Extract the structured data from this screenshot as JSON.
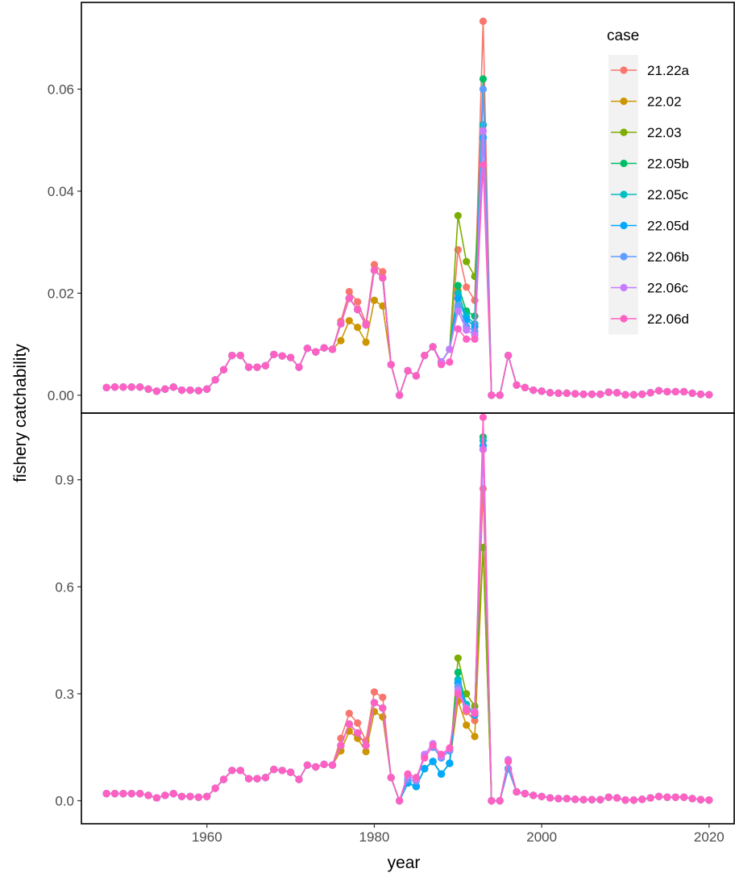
{
  "chart_data": {
    "type": "line",
    "xlabel": "year",
    "ylabel": "fishery catchability",
    "x_ticks": [
      1960,
      1980,
      2000,
      2020
    ],
    "x_tick_labels": [
      "1960",
      "1980",
      "2000",
      "2020"
    ],
    "xlim": [
      1945,
      2023
    ],
    "legend_title": "case",
    "legend_position": "top-right",
    "grid": false,
    "colors": {
      "21.22a": "#F8766D",
      "22.02": "#CD9600",
      "22.03": "#7CAE00",
      "22.05b": "#00BE67",
      "22.05c": "#00BFC4",
      "22.05d": "#00A9FF",
      "22.06b": "#619CFF",
      "22.06c": "#C77CFF",
      "22.06d": "#FF61C3"
    },
    "panels": [
      {
        "ylim": [
          -0.0035,
          0.077
        ],
        "y_ticks": [
          0,
          0.02,
          0.04,
          0.06
        ],
        "y_tick_labels": [
          "0.00",
          "0.02",
          "0.04",
          "0.06"
        ],
        "years": [
          1948,
          1949,
          1950,
          1951,
          1952,
          1953,
          1954,
          1955,
          1956,
          1957,
          1958,
          1959,
          1960,
          1961,
          1962,
          1963,
          1964,
          1965,
          1966,
          1967,
          1968,
          1969,
          1970,
          1971,
          1972,
          1973,
          1974,
          1975,
          1976,
          1977,
          1978,
          1979,
          1980,
          1981,
          1982,
          1983,
          1984,
          1985,
          1986,
          1987,
          1988,
          1989,
          1990,
          1991,
          1992,
          1993,
          1994,
          1995,
          1996,
          1997,
          1998,
          1999,
          2000,
          2001,
          2002,
          2003,
          2004,
          2005,
          2006,
          2007,
          2008,
          2009,
          2010,
          2011,
          2012,
          2013,
          2014,
          2015,
          2016,
          2017,
          2018,
          2019,
          2020
        ],
        "base": [
          0.0015,
          0.0016,
          0.0016,
          0.0016,
          0.0016,
          0.0012,
          0.0008,
          0.0012,
          0.0016,
          0.001,
          0.001,
          0.0009,
          0.0012,
          0.003,
          0.005,
          0.0078,
          0.0078,
          0.0055,
          0.0055,
          0.0058,
          0.008,
          0.0077,
          0.0074,
          0.0055,
          0.0092,
          0.0085,
          0.0093,
          0.009,
          0.014,
          0.019,
          0.0168,
          0.0138,
          0.0245,
          0.023,
          0.006,
          0.0,
          0.0048,
          0.0038,
          0.0078,
          0.0095,
          0.0065,
          0.009,
          0.021,
          0.016,
          0.015,
          0.061,
          0.0,
          0.0,
          0.0078,
          0.002,
          0.0015,
          0.001,
          0.0008,
          0.0005,
          0.0004,
          0.0004,
          0.0003,
          0.0002,
          0.0002,
          0.0002,
          0.0006,
          0.0005,
          0.0001,
          0.0001,
          0.0002,
          0.0005,
          0.0009,
          0.0007,
          0.0007,
          0.0007,
          0.0004,
          0.0002,
          0.0001
        ],
        "overrides": {
          "21.22a": {
            "1976": 0.0145,
            "1977": 0.0203,
            "1978": 0.0183,
            "1979": 0.0141,
            "1980": 0.0256,
            "1981": 0.0242,
            "1990": 0.0285,
            "1991": 0.0212,
            "1992": 0.0186,
            "1993": 0.0733
          },
          "22.02": {
            "1976": 0.0107,
            "1977": 0.0146,
            "1978": 0.0133,
            "1979": 0.0104,
            "1980": 0.0186,
            "1981": 0.0175,
            "1990": 0.0205,
            "1991": 0.015,
            "1992": 0.0134,
            "1993": 0.053
          },
          "22.03": {
            "1990": 0.0352,
            "1991": 0.0262,
            "1992": 0.0233,
            "1993": 0.053
          },
          "22.05b": {
            "1990": 0.0215,
            "1991": 0.0165,
            "1992": 0.0155,
            "1993": 0.062
          },
          "22.05c": {
            "1990": 0.02,
            "1991": 0.0155,
            "1992": 0.014,
            "1993": 0.053
          },
          "22.05d": {
            "1990": 0.019,
            "1991": 0.0148,
            "1992": 0.0135,
            "1993": 0.0505
          },
          "22.06b": {
            "1990": 0.0175,
            "1991": 0.0135,
            "1992": 0.0125,
            "1993": 0.06
          },
          "22.06c": {
            "1990": 0.0165,
            "1991": 0.0128,
            "1992": 0.0118,
            "1993": 0.0518
          },
          "22.06d": {
            "1988": 0.006,
            "1989": 0.0065,
            "1990": 0.013,
            "1991": 0.011,
            "1992": 0.011,
            "1993": 0.0452
          }
        }
      },
      {
        "ylim": [
          -0.0645,
          1.087
        ],
        "y_ticks": [
          0,
          0.3,
          0.6,
          0.9
        ],
        "y_tick_labels": [
          "0.0",
          "0.3",
          "0.6",
          "0.9"
        ],
        "years": [
          1948,
          1949,
          1950,
          1951,
          1952,
          1953,
          1954,
          1955,
          1956,
          1957,
          1958,
          1959,
          1960,
          1961,
          1962,
          1963,
          1964,
          1965,
          1966,
          1967,
          1968,
          1969,
          1970,
          1971,
          1972,
          1973,
          1974,
          1975,
          1976,
          1977,
          1978,
          1979,
          1980,
          1981,
          1982,
          1983,
          1984,
          1985,
          1986,
          1987,
          1988,
          1989,
          1990,
          1991,
          1992,
          1993,
          1994,
          1995,
          1996,
          1997,
          1998,
          1999,
          2000,
          2001,
          2002,
          2003,
          2004,
          2005,
          2006,
          2007,
          2008,
          2009,
          2010,
          2011,
          2012,
          2013,
          2014,
          2015,
          2016,
          2017,
          2018,
          2019,
          2020
        ],
        "base": [
          0.02,
          0.02,
          0.02,
          0.02,
          0.02,
          0.015,
          0.008,
          0.015,
          0.02,
          0.012,
          0.012,
          0.01,
          0.012,
          0.035,
          0.06,
          0.085,
          0.085,
          0.062,
          0.062,
          0.065,
          0.088,
          0.085,
          0.08,
          0.06,
          0.1,
          0.095,
          0.102,
          0.1,
          0.155,
          0.215,
          0.19,
          0.155,
          0.275,
          0.26,
          0.065,
          0.0,
          0.05,
          0.04,
          0.09,
          0.11,
          0.075,
          0.105,
          0.35,
          0.28,
          0.25,
          1.0,
          0.0,
          0.0,
          0.09,
          0.025,
          0.02,
          0.015,
          0.012,
          0.008,
          0.006,
          0.006,
          0.004,
          0.003,
          0.003,
          0.003,
          0.01,
          0.008,
          0.002,
          0.002,
          0.004,
          0.008,
          0.012,
          0.01,
          0.01,
          0.01,
          0.006,
          0.003,
          0.002
        ],
        "overrides": {
          "21.22a": {
            "1976": 0.175,
            "1977": 0.245,
            "1978": 0.218,
            "1979": 0.168,
            "1980": 0.305,
            "1981": 0.29,
            "1990": 0.33,
            "1991": 0.25,
            "1992": 0.225,
            "1993": 0.875
          },
          "22.02": {
            "1976": 0.14,
            "1977": 0.195,
            "1978": 0.175,
            "1979": 0.138,
            "1980": 0.25,
            "1981": 0.235,
            "1990": 0.28,
            "1991": 0.212,
            "1992": 0.18,
            "1993": 0.71
          },
          "22.03": {
            "1990": 0.4,
            "1991": 0.3,
            "1992": 0.265,
            "1993": 0.71
          },
          "22.05b": {
            "1990": 0.36,
            "1991": 0.27,
            "1992": 0.24,
            "1993": 1.02
          },
          "22.05c": {
            "1990": 0.34,
            "1991": 0.27,
            "1992": 0.245,
            "1993": 1.01
          },
          "22.05d": {
            "1990": 0.33,
            "1991": 0.26,
            "1992": 0.24,
            "1993": 0.995
          },
          "22.06b": {
            "1984": 0.06,
            "1985": 0.055,
            "1986": 0.125,
            "1987": 0.15,
            "1988": 0.12,
            "1989": 0.14,
            "1990": 0.32,
            "1991": 0.255,
            "1992": 0.245,
            "1993": 0.985
          },
          "22.06c": {
            "1984": 0.07,
            "1985": 0.06,
            "1986": 0.13,
            "1987": 0.16,
            "1988": 0.125,
            "1989": 0.145,
            "1990": 0.31,
            "1991": 0.26,
            "1992": 0.25,
            "1993": 0.985,
            "1996": 0.115
          },
          "22.06d": {
            "1984": 0.075,
            "1985": 0.065,
            "1986": 0.12,
            "1987": 0.155,
            "1988": 0.13,
            "1989": 0.148,
            "1990": 0.3,
            "1991": 0.255,
            "1992": 0.245,
            "1993": 1.075,
            "1996": 0.11
          }
        }
      }
    ],
    "series": [
      {
        "name": "21.22a"
      },
      {
        "name": "22.02"
      },
      {
        "name": "22.03"
      },
      {
        "name": "22.05b"
      },
      {
        "name": "22.05c"
      },
      {
        "name": "22.05d"
      },
      {
        "name": "22.06b"
      },
      {
        "name": "22.06c"
      },
      {
        "name": "22.06d"
      }
    ]
  }
}
